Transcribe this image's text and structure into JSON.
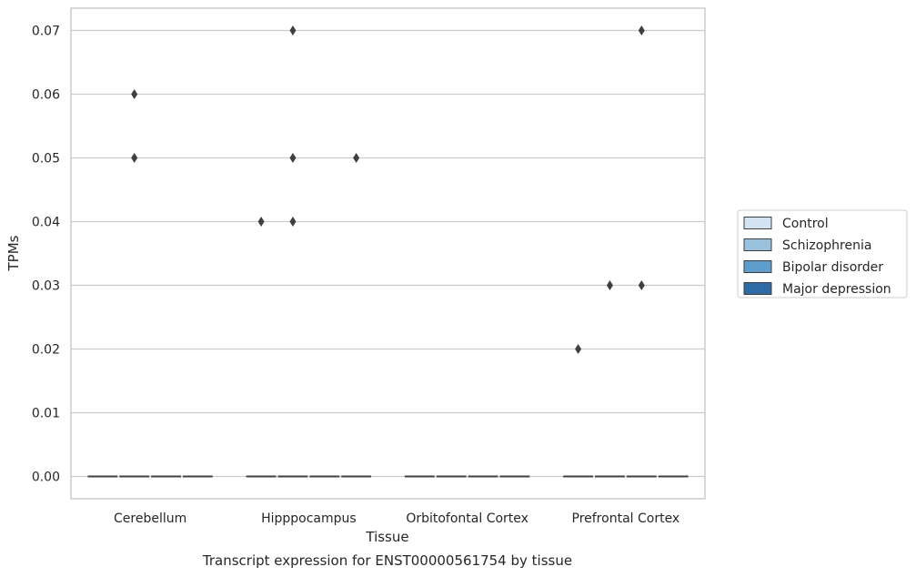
{
  "chart_data": {
    "type": "box",
    "caption": "Transcript expression for ENST00000561754 by tissue",
    "xlabel": "Tissue",
    "ylabel": "TPMs",
    "ylim": [
      -0.0035,
      0.0735
    ],
    "yticks": [
      0.0,
      0.01,
      0.02,
      0.03,
      0.04,
      0.05,
      0.06,
      0.07
    ],
    "ytick_labels": [
      "0.00",
      "0.01",
      "0.02",
      "0.03",
      "0.04",
      "0.05",
      "0.06",
      "0.07"
    ],
    "grid": true,
    "legend_position": "right",
    "categories": [
      "Cerebellum",
      "Hipppocampus",
      "Orbitofontal Cortex",
      "Prefrontal Cortex"
    ],
    "series": [
      {
        "name": "Control",
        "color": "#d3e3f2",
        "median": [
          0,
          0,
          0,
          0
        ],
        "outliers": [
          [],
          [
            0.04
          ],
          [],
          [
            0.02
          ]
        ]
      },
      {
        "name": "Schizophrenia",
        "color": "#9ac2dd",
        "median": [
          0,
          0,
          0,
          0
        ],
        "outliers": [
          [
            0.06,
            0.05
          ],
          [
            0.07,
            0.05,
            0.04
          ],
          [],
          [
            0.03
          ]
        ]
      },
      {
        "name": "Bipolar disorder",
        "color": "#5e9ecd",
        "median": [
          0,
          0,
          0,
          0
        ],
        "outliers": [
          [],
          [],
          [],
          [
            0.07,
            0.03
          ]
        ]
      },
      {
        "name": "Major depression",
        "color": "#2e6ba6",
        "median": [
          0,
          0,
          0,
          0
        ],
        "outliers": [
          [],
          [
            0.05
          ],
          [],
          []
        ]
      }
    ]
  }
}
